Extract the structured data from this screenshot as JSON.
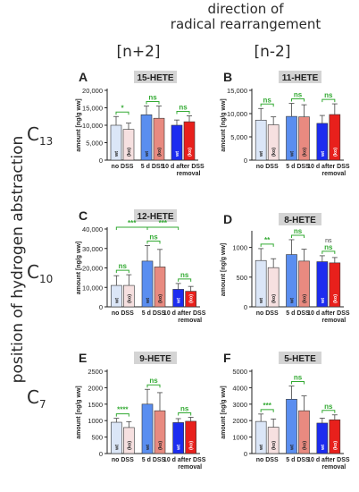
{
  "headers": {
    "top_line1": "direction of",
    "top_line2": "radical rearrangement",
    "col_left": "[n+2]",
    "col_right": "[n-2]",
    "side": "position of hydrogen abstraction",
    "rows": [
      {
        "base": "C",
        "sub": "13"
      },
      {
        "base": "C",
        "sub": "10"
      },
      {
        "base": "C",
        "sub": "7"
      }
    ]
  },
  "colors": {
    "wt_light": "#dbe6f7",
    "ko_light": "#f6e0e0",
    "wt_mid": "#5a8ef0",
    "ko_mid": "#e88a80",
    "wt_dark": "#1c2cf0",
    "ko_dark": "#e8201c",
    "sig": "#33aa33",
    "title_bg": "#d4d4d4"
  },
  "chart_data": [
    {
      "type": "bar",
      "letter": "A",
      "title": "15-HETE",
      "ylabel": "amount [ng/g ww]",
      "ylim": [
        0,
        20000
      ],
      "yticks": [
        "0",
        "5,000",
        "10,000",
        "15,000",
        "20,000"
      ],
      "categories": [
        "no DSS",
        "5 d DSS",
        "10 d after DSS removal"
      ],
      "series": [
        {
          "name": "wt",
          "values": [
            10000,
            13000,
            10000
          ],
          "errors": [
            2500,
            2500,
            1500
          ]
        },
        {
          "name": "(ko)",
          "values": [
            8800,
            12000,
            11000
          ],
          "errors": [
            1800,
            3500,
            1700
          ]
        }
      ],
      "sig": [
        {
          "pair": "within",
          "group": 0,
          "label": "*"
        },
        {
          "pair": "within",
          "group": 1,
          "label": "ns"
        },
        {
          "pair": "within",
          "group": 2,
          "label": "ns"
        }
      ]
    },
    {
      "type": "bar",
      "letter": "B",
      "title": "11-HETE",
      "ylabel": "amount [ng/g ww]",
      "ylim": [
        0,
        15000
      ],
      "yticks": [
        "0",
        "5,000",
        "10,000",
        "15,000"
      ],
      "categories": [
        "no DSS",
        "5 d DSS",
        "10 d after DSS removal"
      ],
      "series": [
        {
          "name": "wt",
          "values": [
            8600,
            9400,
            7900
          ],
          "errors": [
            2500,
            2800,
            1700
          ]
        },
        {
          "name": "(ko)",
          "values": [
            7600,
            9300,
            9800
          ],
          "errors": [
            1700,
            2600,
            2300
          ]
        }
      ],
      "sig": [
        {
          "pair": "within",
          "group": 0,
          "label": "ns"
        },
        {
          "pair": "within",
          "group": 1,
          "label": "ns"
        },
        {
          "pair": "within",
          "group": 2,
          "label": "ns"
        }
      ]
    },
    {
      "type": "bar",
      "letter": "C",
      "title": "12-HETE",
      "ylabel": "amount [ng/g ww]",
      "ylim": [
        0,
        40000
      ],
      "yticks": [
        "0",
        "10,000",
        "20,000",
        "30,000",
        "40,000"
      ],
      "categories": [
        "no DSS",
        "5 d DSS",
        "10 d after DSS removal"
      ],
      "series": [
        {
          "name": "wt",
          "values": [
            11000,
            23500,
            9000
          ],
          "errors": [
            5000,
            8000,
            3000
          ]
        },
        {
          "name": "(ko)",
          "values": [
            11000,
            20500,
            8000
          ],
          "errors": [
            5500,
            9000,
            2500
          ]
        }
      ],
      "sig": [
        {
          "pair": "within",
          "group": 0,
          "label": "ns"
        },
        {
          "pair": "within",
          "group": 1,
          "label": "ns"
        },
        {
          "pair": "within",
          "group": 2,
          "label": "ns"
        },
        {
          "pair": "between",
          "from": 0,
          "to": 1,
          "label": "***"
        },
        {
          "pair": "between",
          "from": 1,
          "to": 2,
          "label": "***"
        }
      ]
    },
    {
      "type": "bar",
      "letter": "D",
      "title": "8-HETE",
      "ylabel": "amount [ng/g ww]",
      "ylim": [
        0,
        1250
      ],
      "yticks": [
        "0",
        "500",
        "1000"
      ],
      "categories": [
        "no DSS",
        "5 d DSS",
        "10 d after DSS removal"
      ],
      "series": [
        {
          "name": "wt",
          "values": [
            780,
            880,
            760
          ],
          "errors": [
            200,
            250,
            100
          ]
        },
        {
          "name": "(ko)",
          "values": [
            660,
            770,
            740
          ],
          "errors": [
            150,
            200,
            90
          ]
        }
      ],
      "sig": [
        {
          "pair": "within",
          "group": 0,
          "label": "**"
        },
        {
          "pair": "within",
          "group": 1,
          "label": "ns"
        },
        {
          "pair": "within",
          "group": 2,
          "label": "ns"
        },
        {
          "pair": "within2",
          "group": 2,
          "label": "ns"
        }
      ]
    },
    {
      "type": "bar",
      "letter": "E",
      "title": "9-HETE",
      "ylabel": "amount [ng/g ww]",
      "ylim": [
        0,
        2500
      ],
      "yticks": [
        "0",
        "500",
        "1000",
        "1500",
        "2000",
        "2500"
      ],
      "categories": [
        "no DSS",
        "5 d DSS",
        "10 d after DSS removal"
      ],
      "series": [
        {
          "name": "wt",
          "values": [
            950,
            1500,
            940
          ],
          "errors": [
            120,
            450,
            120
          ]
        },
        {
          "name": "(ko)",
          "values": [
            790,
            1300,
            980
          ],
          "errors": [
            180,
            550,
            120
          ]
        }
      ],
      "sig": [
        {
          "pair": "within",
          "group": 0,
          "label": "****"
        },
        {
          "pair": "within",
          "group": 1,
          "label": "ns"
        },
        {
          "pair": "within",
          "group": 2,
          "label": "ns"
        }
      ]
    },
    {
      "type": "bar",
      "letter": "F",
      "title": "5-HETE",
      "ylabel": "amount [ng/g ww]",
      "ylim": [
        0,
        5000
      ],
      "yticks": [
        "0",
        "1000",
        "2000",
        "3000",
        "4000",
        "5000"
      ],
      "categories": [
        "no DSS",
        "5 d DSS",
        "10 d after DSS removal"
      ],
      "series": [
        {
          "name": "wt",
          "values": [
            1950,
            3300,
            1850
          ],
          "errors": [
            450,
            800,
            300
          ]
        },
        {
          "name": "(ko)",
          "values": [
            1600,
            2600,
            2050
          ],
          "errors": [
            500,
            900,
            300
          ]
        }
      ],
      "sig": [
        {
          "pair": "within",
          "group": 0,
          "label": "***"
        },
        {
          "pair": "within",
          "group": 1,
          "label": "ns"
        },
        {
          "pair": "within",
          "group": 2,
          "label": "ns"
        }
      ]
    }
  ]
}
